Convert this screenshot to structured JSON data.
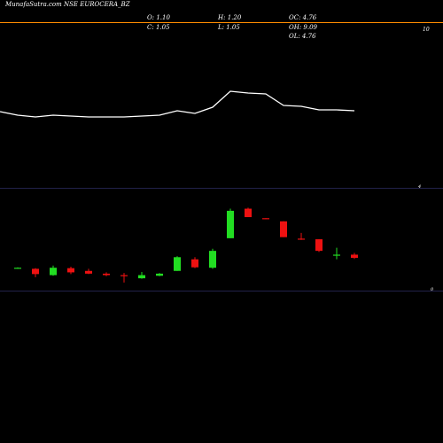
{
  "chart_data": {
    "type": "candlestick",
    "title": "MunafaSutra.com NSE EUROCERA_BZ",
    "ohlc_labels": {
      "open": "O: 1.10",
      "high": "H: 1.20",
      "oc": "OC: 4.76",
      "close": "C: 1.05",
      "low": "L: 1.05",
      "oh": "OH: 9.09",
      "ol": "OL: 4.76"
    },
    "volume_axis_label": "10",
    "price_axis_labels": [
      "4",
      "0"
    ],
    "volume_line": [
      126,
      130,
      132,
      130,
      131,
      132,
      132,
      132,
      131,
      130,
      125,
      128,
      121,
      103,
      105,
      106,
      119,
      120,
      124,
      124,
      125
    ],
    "price_ylim": [
      0,
      4.2
    ],
    "candles": [
      {
        "open": 0.98,
        "high": 1.02,
        "low": 0.95,
        "close": 1.0
      },
      {
        "open": 0.95,
        "high": 0.98,
        "low": 0.55,
        "close": 0.7
      },
      {
        "open": 0.65,
        "high": 1.1,
        "low": 0.62,
        "close": 1.0
      },
      {
        "open": 0.98,
        "high": 1.05,
        "low": 0.7,
        "close": 0.78
      },
      {
        "open": 0.85,
        "high": 0.95,
        "low": 0.7,
        "close": 0.72
      },
      {
        "open": 0.72,
        "high": 0.78,
        "low": 0.6,
        "close": 0.65
      },
      {
        "open": 0.65,
        "high": 0.75,
        "low": 0.3,
        "close": 0.6
      },
      {
        "open": 0.5,
        "high": 0.8,
        "low": 0.48,
        "close": 0.65
      },
      {
        "open": 0.62,
        "high": 0.75,
        "low": 0.6,
        "close": 0.72
      },
      {
        "open": 0.85,
        "high": 1.55,
        "low": 0.85,
        "close": 1.5
      },
      {
        "open": 1.4,
        "high": 1.5,
        "low": 0.98,
        "close": 1.02
      },
      {
        "open": 1.0,
        "high": 1.9,
        "low": 0.95,
        "close": 1.8
      },
      {
        "open": 2.4,
        "high": 3.8,
        "low": 2.4,
        "close": 3.7
      },
      {
        "open": 3.8,
        "high": 3.85,
        "low": 3.4,
        "close": 3.4
      },
      {
        "open": 3.35,
        "high": 3.35,
        "low": 3.3,
        "close": 3.3
      },
      {
        "open": 3.2,
        "high": 3.2,
        "low": 2.45,
        "close": 2.45
      },
      {
        "open": 2.38,
        "high": 2.65,
        "low": 2.32,
        "close": 2.35
      },
      {
        "open": 2.35,
        "high": 2.35,
        "low": 1.75,
        "close": 1.8
      },
      {
        "open": 1.6,
        "high": 1.95,
        "low": 1.4,
        "close": 1.62
      },
      {
        "open": 1.62,
        "high": 1.7,
        "low": 1.42,
        "close": 1.47
      }
    ],
    "colors": {
      "up": "#22dd22",
      "down": "#ee1111",
      "flat": "#ffffff",
      "line": "#ffffff",
      "title_rule": "#ff8c00",
      "divider": "#22224a"
    }
  }
}
